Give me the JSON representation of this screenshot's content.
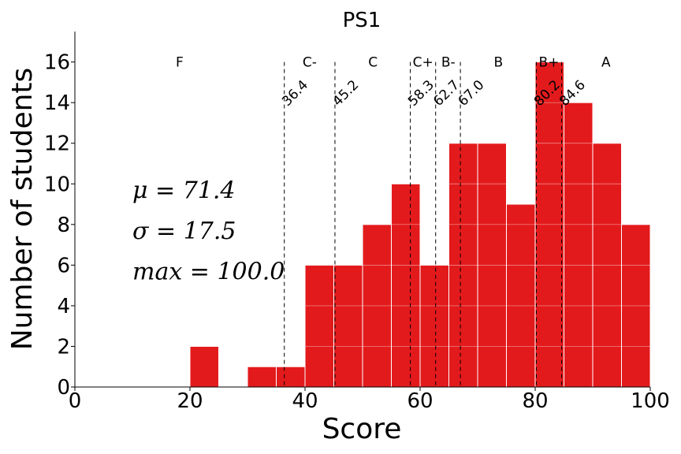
{
  "chart_data": {
    "type": "bar",
    "title": "PS1",
    "xlabel": "Score",
    "ylabel": "Number of students",
    "xlim": [
      0,
      100
    ],
    "ylim": [
      0,
      17.5
    ],
    "xticks": [
      0,
      20,
      40,
      60,
      80,
      100
    ],
    "xtick_labels": [
      "0",
      "20",
      "40",
      "60",
      "80",
      "100"
    ],
    "yticks": [
      0,
      2,
      4,
      6,
      8,
      10,
      12,
      14,
      16
    ],
    "ytick_labels": [
      "0",
      "2",
      "4",
      "6",
      "8",
      "10",
      "12",
      "14",
      "16"
    ],
    "grid": "horizontal",
    "bar_color": "#e31a1c",
    "bins": [
      {
        "start": 20,
        "end": 25,
        "value": 2
      },
      {
        "start": 30,
        "end": 35,
        "value": 1
      },
      {
        "start": 35,
        "end": 40,
        "value": 1
      },
      {
        "start": 40,
        "end": 45,
        "value": 6
      },
      {
        "start": 45,
        "end": 50,
        "value": 6
      },
      {
        "start": 50,
        "end": 55,
        "value": 8
      },
      {
        "start": 55,
        "end": 60,
        "value": 10
      },
      {
        "start": 60,
        "end": 65,
        "value": 6
      },
      {
        "start": 65,
        "end": 70,
        "value": 12
      },
      {
        "start": 70,
        "end": 75,
        "value": 12
      },
      {
        "start": 75,
        "end": 80,
        "value": 9
      },
      {
        "start": 80,
        "end": 85,
        "value": 16
      },
      {
        "start": 85,
        "end": 90,
        "value": 14
      },
      {
        "start": 90,
        "end": 95,
        "value": 12
      },
      {
        "start": 95,
        "end": 100,
        "value": 8
      }
    ],
    "cutoffs": [
      {
        "value": 36.4,
        "label": "36.4"
      },
      {
        "value": 45.2,
        "label": "45.2"
      },
      {
        "value": 58.3,
        "label": "58.3"
      },
      {
        "value": 62.7,
        "label": "62.7"
      },
      {
        "value": 67.0,
        "label": "67.0"
      },
      {
        "value": 80.2,
        "label": "80.2"
      },
      {
        "value": 84.6,
        "label": "84.6"
      }
    ],
    "grade_labels": [
      {
        "grade": "F",
        "x": 18.2
      },
      {
        "grade": "C-",
        "x": 40.8
      },
      {
        "grade": "C",
        "x": 51.8
      },
      {
        "grade": "C+",
        "x": 60.5
      },
      {
        "grade": "B-",
        "x": 64.9
      },
      {
        "grade": "B",
        "x": 73.6
      },
      {
        "grade": "B+",
        "x": 82.4
      },
      {
        "grade": "A",
        "x": 92.3
      }
    ],
    "grade_label_y": 16,
    "stats": [
      {
        "text": "μ = 71.4"
      },
      {
        "text": "σ = 17.5"
      },
      {
        "text": "max = 100.0"
      }
    ]
  }
}
